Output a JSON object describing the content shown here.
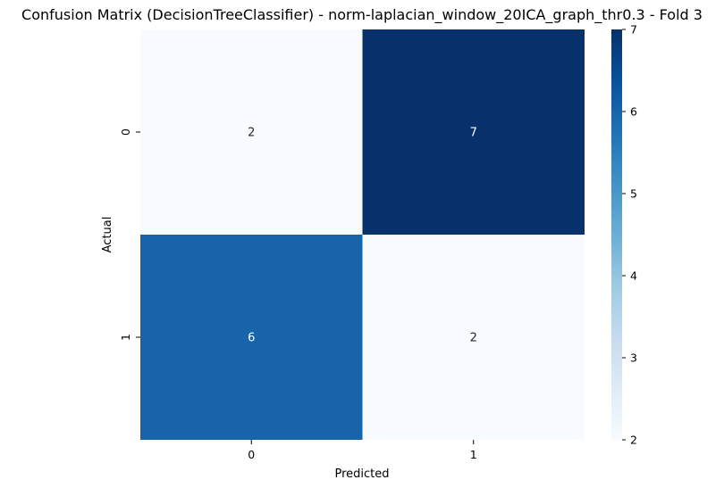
{
  "chart_data": {
    "type": "heatmap",
    "title": "Confusion Matrix (DecisionTreeClassifier) - norm-laplacian_window_20ICA_graph_thr0.3 - Fold 3",
    "xlabel": "Predicted",
    "ylabel": "Actual",
    "x_categories": [
      "0",
      "1"
    ],
    "y_categories": [
      "0",
      "1"
    ],
    "values": [
      [
        2,
        7
      ],
      [
        6,
        2
      ]
    ],
    "colormap": "Blues",
    "colorbar": {
      "min": 2,
      "max": 7,
      "ticks": [
        "2",
        "3",
        "4",
        "5",
        "6",
        "7"
      ]
    },
    "annotations": true
  }
}
